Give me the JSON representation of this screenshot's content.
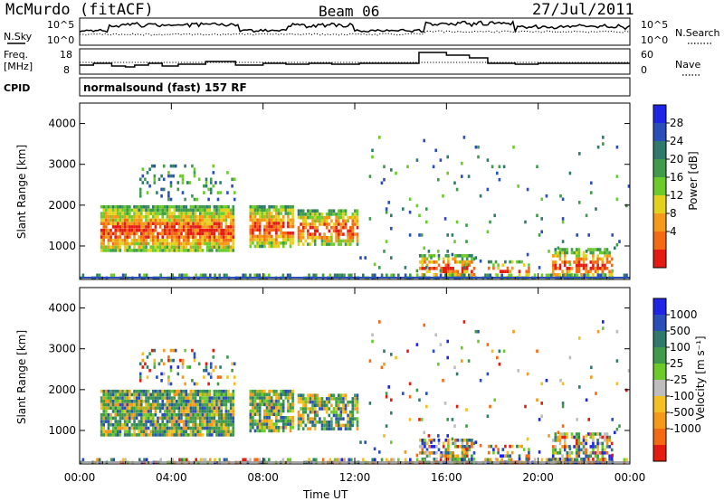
{
  "header": {
    "station": "McMurdo (fitACF)",
    "beam": "Beam 06",
    "date": "27/Jul/2011"
  },
  "noise_panel": {
    "left_label": "N.Sky",
    "right_label": "N.Search",
    "left_ticks": [
      "10^5",
      "10^0"
    ],
    "right_ticks": [
      "10^5",
      "10^0"
    ]
  },
  "freq_panel": {
    "left_label_1": "Freq.",
    "left_label_2": "[MHz]",
    "right_label": "Nave",
    "left_ticks": [
      "18",
      "8"
    ],
    "right_ticks": [
      "60",
      "0"
    ]
  },
  "cpid": {
    "label": "CPID",
    "text": "normalsound (fast) 157 RF"
  },
  "chart_data": [
    {
      "type": "heatmap",
      "name": "power",
      "ylabel": "Slant Range [km]",
      "yticks": [
        "4000",
        "3000",
        "2000",
        "1000"
      ],
      "ylim": [
        180,
        4500
      ],
      "colorbar_label": "Power [dB]",
      "colorbar_ticks": [
        "28",
        "24",
        "20",
        "16",
        "12",
        "8",
        "4"
      ],
      "colors": [
        "#1f24e6",
        "#2a4fb8",
        "#2f7a6a",
        "#3f9a4a",
        "#6ccb2a",
        "#e3d21c",
        "#f59a18",
        "#f36a12",
        "#e51b12"
      ]
    },
    {
      "type": "heatmap",
      "name": "velocity",
      "ylabel": "Slant Range [km]",
      "yticks": [
        "4000",
        "3000",
        "2000",
        "1000"
      ],
      "ylim": [
        180,
        4500
      ],
      "colorbar_label": "Velocity [m s⁻¹]",
      "colorbar_ticks": [
        "1000",
        "500",
        "100",
        "25",
        "-25",
        "-100",
        "-500",
        "-1000"
      ],
      "colors": [
        "#1f24e6",
        "#2a4fb8",
        "#2f7a6a",
        "#3f9a4a",
        "#6ccb2a",
        "#bdbdbd",
        "#f2c020",
        "#f59a18",
        "#f36a12",
        "#e51b12"
      ]
    }
  ],
  "xaxis": {
    "label": "Time UT",
    "ticks": [
      "00:00",
      "04:00",
      "08:00",
      "12:00",
      "16:00",
      "20:00",
      "00:00"
    ]
  }
}
